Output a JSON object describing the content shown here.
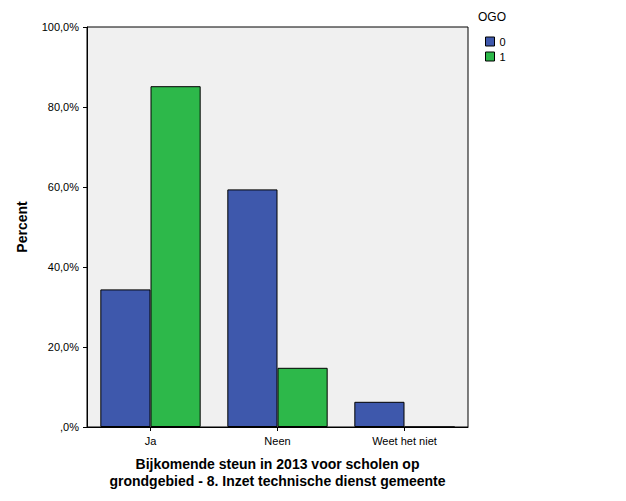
{
  "chart_data": {
    "type": "bar",
    "x_label": "Bijkomende steun in 2013 voor scholen op\ngrondgebied - 8. Inzet technische dienst gemeente",
    "y_label": "Percent",
    "categories": [
      "Ja",
      "Neen",
      "Weet het niet"
    ],
    "series": [
      {
        "name": "0",
        "color": "#3e58ac",
        "values": [
          34.4,
          59.4,
          6.3
        ]
      },
      {
        "name": "1",
        "color": "#2db84a",
        "values": [
          85.2,
          14.8,
          0
        ]
      }
    ],
    "ylim": [
      0,
      100
    ],
    "yticks": [
      {
        "value": 0,
        "label": ",0%"
      },
      {
        "value": 20,
        "label": "20,0%"
      },
      {
        "value": 40,
        "label": "40,0%"
      },
      {
        "value": 60,
        "label": "60,0%"
      },
      {
        "value": 80,
        "label": "80,0%"
      },
      {
        "value": 100,
        "label": "100,0%"
      }
    ],
    "grid": false,
    "legend": "top-right",
    "legend_title": "OGO"
  }
}
